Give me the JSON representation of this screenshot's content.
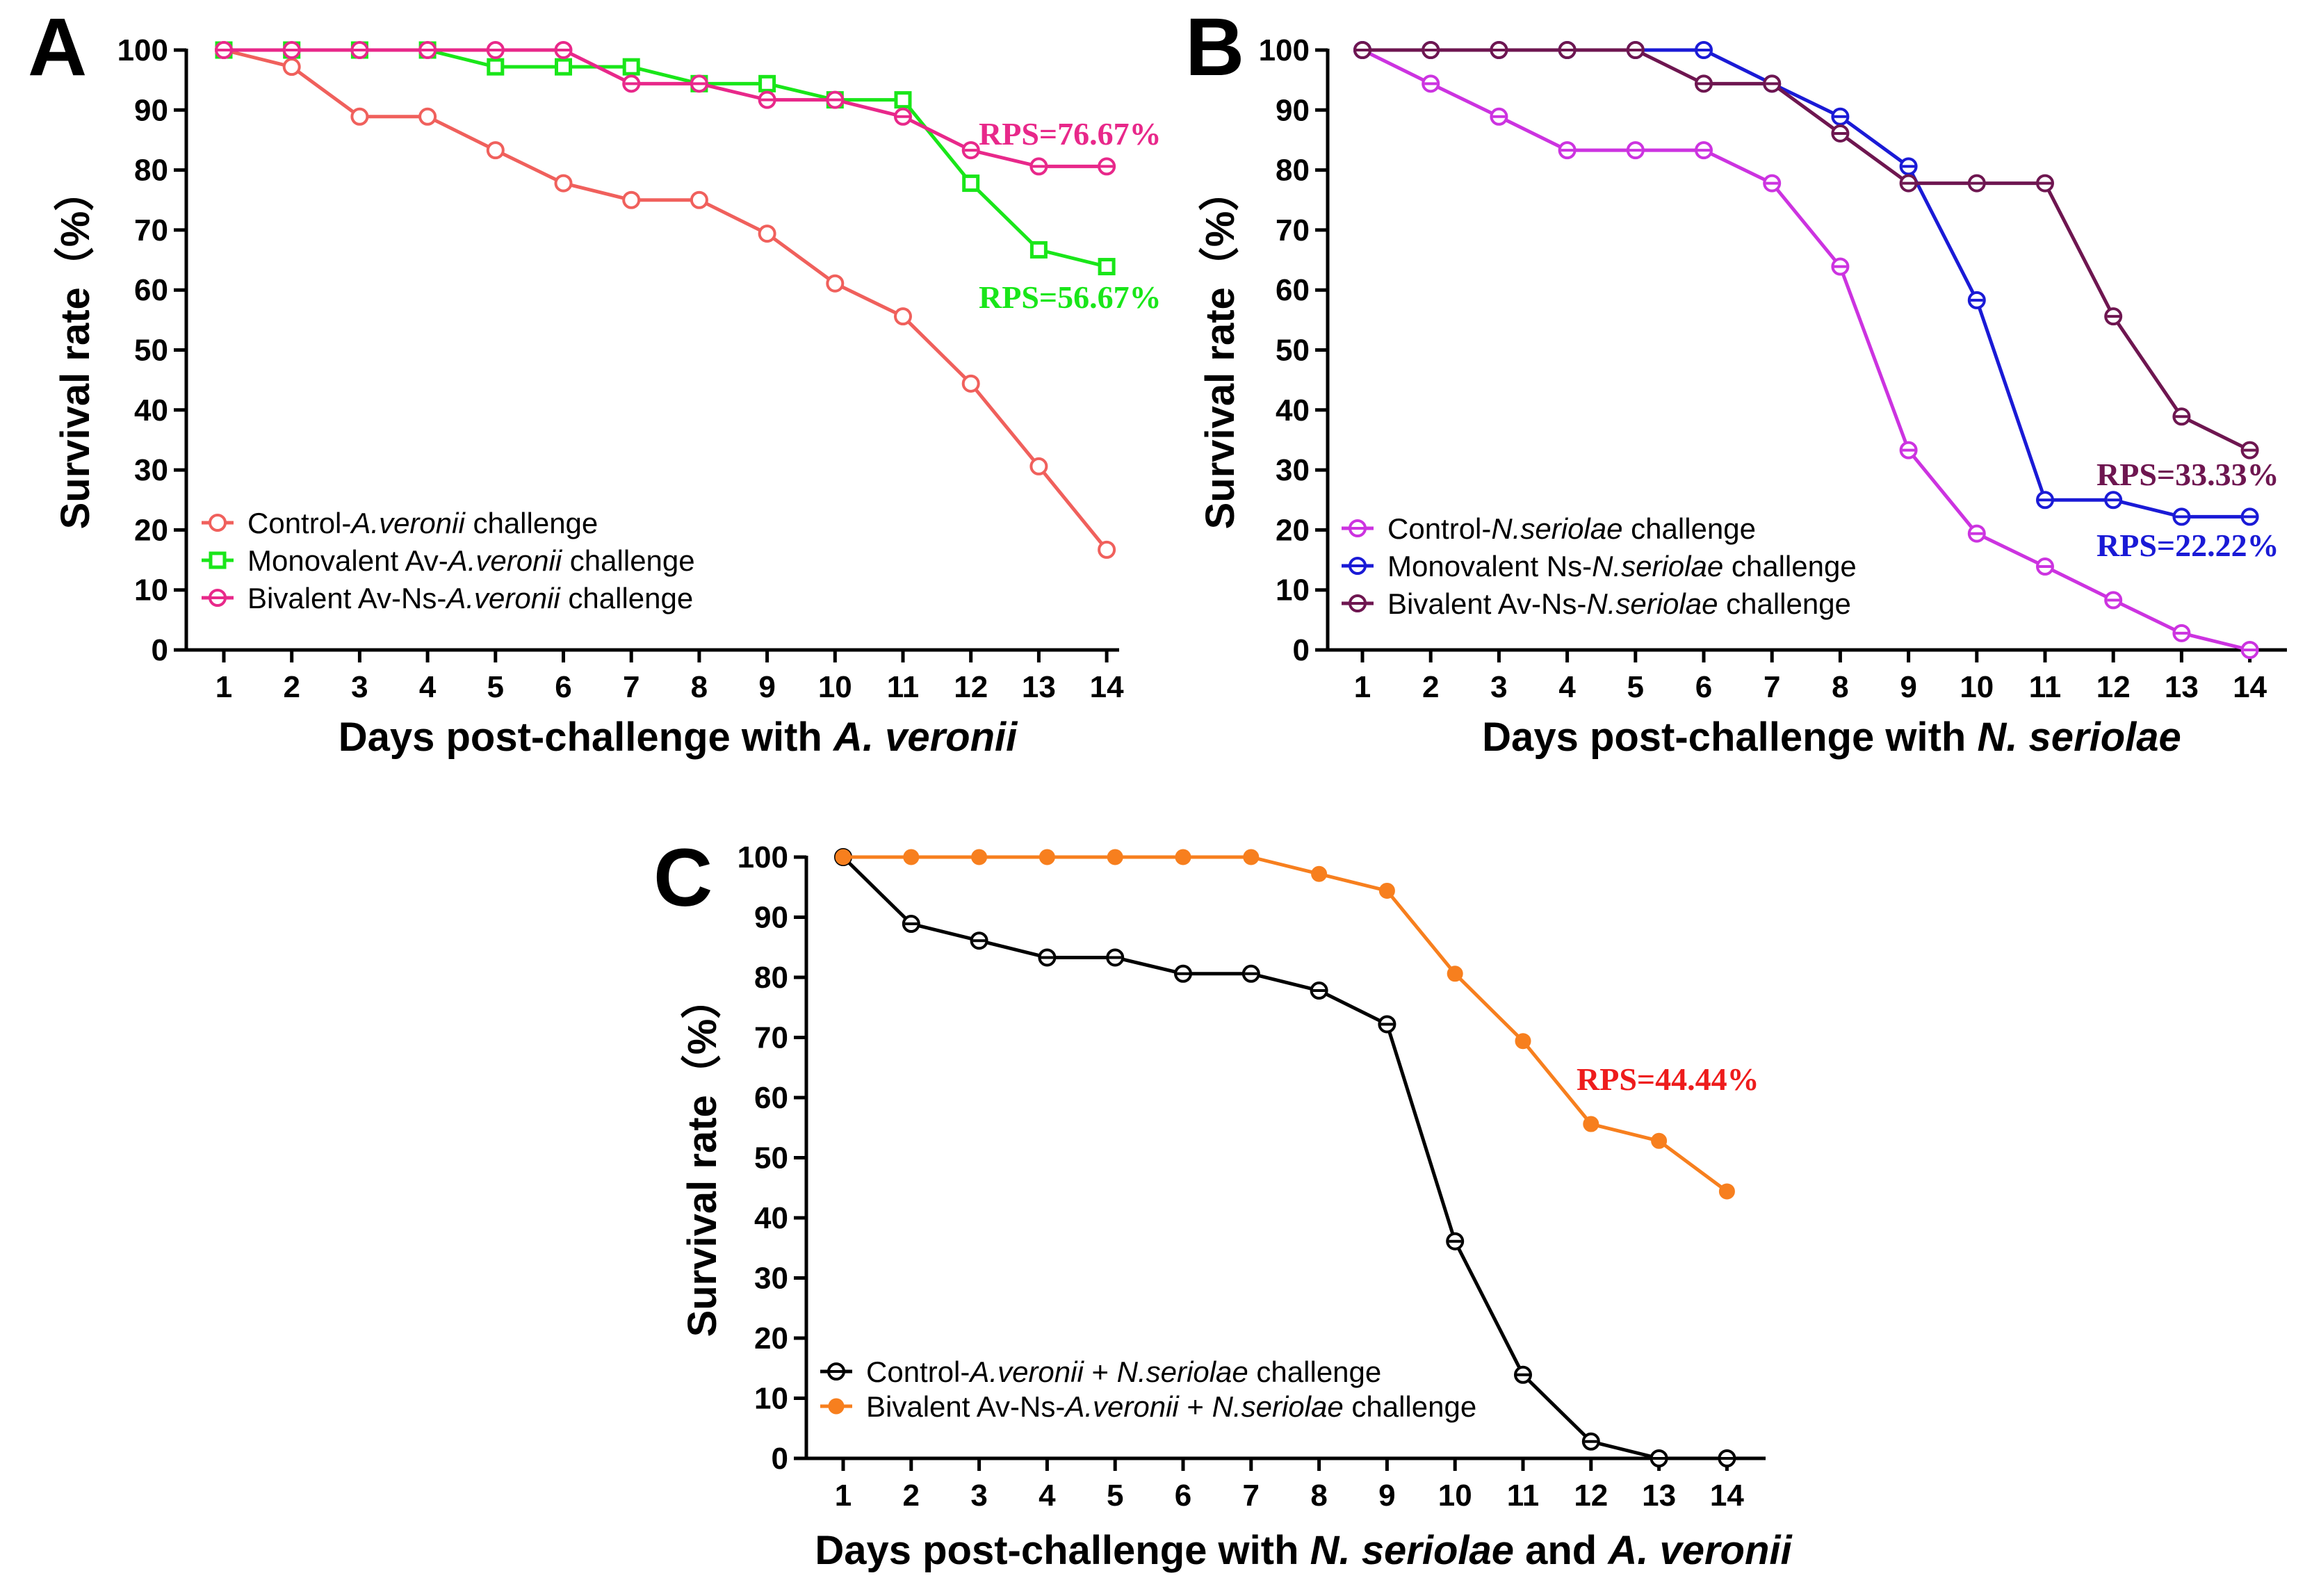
{
  "chart_data": [
    {
      "panel": "A",
      "type": "line",
      "x": [
        1,
        2,
        3,
        4,
        5,
        6,
        7,
        8,
        9,
        10,
        11,
        12,
        13,
        14
      ],
      "xlabel": "Days post-challenge with ",
      "xlabel_italic": "A. veronii",
      "ylabel": "Survival rate（%）",
      "ylim": [
        0,
        100
      ],
      "yticks": [
        0,
        10,
        20,
        30,
        40,
        50,
        60,
        70,
        80,
        90,
        100
      ],
      "legend_position": "bottom-left",
      "series": [
        {
          "name_parts": [
            "Control-",
            "A.veronii",
            " challenge"
          ],
          "color": "#f0605c",
          "marker": "circle",
          "values": [
            100,
            97.2,
            88.9,
            88.9,
            83.3,
            77.8,
            75,
            75,
            69.4,
            61.1,
            55.6,
            44.4,
            30.6,
            16.7
          ]
        },
        {
          "name_parts": [
            "Monovalent Av-",
            "A.veronii",
            " challenge"
          ],
          "color": "#19e619",
          "marker": "square",
          "values": [
            100,
            100,
            100,
            100,
            97.2,
            97.2,
            97.2,
            94.4,
            94.4,
            91.7,
            91.7,
            77.8,
            66.7,
            63.9
          ]
        },
        {
          "name_parts": [
            "Bivalent Av-Ns-",
            "A.veronii",
            " challenge"
          ],
          "color": "#e8288a",
          "marker": "circle-dot",
          "values": [
            100,
            100,
            100,
            100,
            100,
            100,
            94.4,
            94.4,
            91.7,
            91.7,
            88.9,
            83.3,
            80.6,
            80.6
          ]
        }
      ],
      "annotations": [
        {
          "text": "RPS=76.67%",
          "color": "#e8288a"
        },
        {
          "text": "RPS=56.67%",
          "color": "#19e619"
        }
      ]
    },
    {
      "panel": "B",
      "type": "line",
      "x": [
        1,
        2,
        3,
        4,
        5,
        6,
        7,
        8,
        9,
        10,
        11,
        12,
        13,
        14
      ],
      "xlabel": "Days post-challenge with ",
      "xlabel_italic": "N. seriolae",
      "ylabel": "Survival rate（%）",
      "ylim": [
        0,
        100
      ],
      "yticks": [
        0,
        10,
        20,
        30,
        40,
        50,
        60,
        70,
        80,
        90,
        100
      ],
      "legend_position": "bottom-left",
      "series": [
        {
          "name_parts": [
            "Control-",
            "N.seriolae",
            " challenge"
          ],
          "color": "#cc33e0",
          "marker": "circle-dot",
          "values": [
            100,
            94.4,
            88.9,
            83.3,
            83.3,
            83.3,
            77.8,
            63.9,
            33.3,
            19.4,
            13.9,
            8.3,
            2.8,
            0
          ]
        },
        {
          "name_parts": [
            "Monovalent Ns-",
            "N.seriolae",
            " challenge"
          ],
          "color": "#1a1ad6",
          "marker": "circle-dot",
          "values": [
            100,
            100,
            100,
            100,
            100,
            100,
            94.4,
            88.9,
            80.6,
            58.3,
            25,
            25,
            22.2,
            22.2
          ]
        },
        {
          "name_parts": [
            "Bivalent Av-Ns-",
            "N.seriolae",
            " challenge"
          ],
          "color": "#6e1650",
          "marker": "circle-dot",
          "values": [
            100,
            100,
            100,
            100,
            100,
            94.4,
            94.4,
            86.1,
            77.8,
            77.8,
            77.8,
            55.6,
            38.9,
            33.3
          ]
        }
      ],
      "annotations": [
        {
          "text": "RPS=33.33%",
          "color": "#6e1650"
        },
        {
          "text": "RPS=22.22%",
          "color": "#1a1ad6"
        }
      ]
    },
    {
      "panel": "C",
      "type": "line",
      "x": [
        1,
        2,
        3,
        4,
        5,
        6,
        7,
        8,
        9,
        10,
        11,
        12,
        13,
        14
      ],
      "xlabel": "Days post-challenge with ",
      "xlabel_italic": "N. seriolae",
      "xlabel_mid": " and ",
      "xlabel_italic2": "A. veronii",
      "ylabel": "Survival rate（%）",
      "ylim": [
        0,
        100
      ],
      "yticks": [
        0,
        10,
        20,
        30,
        40,
        50,
        60,
        70,
        80,
        90,
        100
      ],
      "legend_position": "bottom-left",
      "series": [
        {
          "name_parts": [
            "Control-",
            "A.veronii",
            " + ",
            "N.seriolae",
            " challenge"
          ],
          "color": "#000000",
          "marker": "circle-dot",
          "values": [
            100,
            88.9,
            86.1,
            83.3,
            83.3,
            80.6,
            80.6,
            77.8,
            72.2,
            36.1,
            13.9,
            2.8,
            0,
            0
          ]
        },
        {
          "name_parts": [
            "Bivalent Av-Ns-",
            "A.veronii",
            " + ",
            "N.seriolae",
            " challenge"
          ],
          "color": "#f77f1e",
          "marker": "dot",
          "values": [
            100,
            100,
            100,
            100,
            100,
            100,
            100,
            97.2,
            94.4,
            80.6,
            69.4,
            55.6,
            52.8,
            44.4
          ]
        }
      ],
      "annotations": [
        {
          "text": "RPS=44.44%",
          "color": "#ee1c1c"
        }
      ]
    }
  ]
}
